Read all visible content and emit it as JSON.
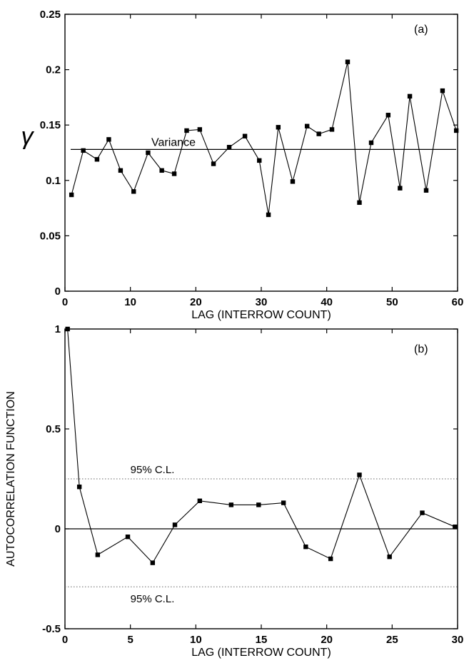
{
  "chart_data": [
    {
      "type": "line",
      "panel_label": "(a)",
      "xlabel": "LAG (INTERROW COUNT)",
      "ylabel": "γ",
      "xlim": [
        0,
        60
      ],
      "ylim": [
        0,
        0.25
      ],
      "xticks": [
        0,
        10,
        20,
        30,
        40,
        50,
        60
      ],
      "yticks": [
        0,
        0.05,
        0.1,
        0.15,
        0.2,
        0.25
      ],
      "ytick_labels": [
        "0",
        "0.05",
        "0.1",
        "0.15",
        "0.2",
        "0.25"
      ],
      "grid": false,
      "series": [
        {
          "color": "#000000",
          "x": [
            1,
            2.8,
            4.9,
            6.7,
            8.5,
            10.5,
            12.7,
            14.8,
            16.7,
            18.6,
            20.6,
            22.7,
            25.1,
            27.5,
            29.7,
            31.1,
            32.6,
            34.8,
            37,
            38.8,
            40.8,
            43.2,
            45,
            46.8,
            49.4,
            51.2,
            52.7,
            55.2,
            57.7,
            59.8
          ],
          "y": [
            0.087,
            0.127,
            0.119,
            0.137,
            0.109,
            0.09,
            0.125,
            0.109,
            0.106,
            0.145,
            0.146,
            0.115,
            0.13,
            0.14,
            0.118,
            0.069,
            0.148,
            0.099,
            0.149,
            0.142,
            0.146,
            0.207,
            0.08,
            0.134,
            0.159,
            0.093,
            0.176,
            0.091,
            0.181,
            0.145
          ]
        }
      ],
      "annotations": [
        {
          "text": "Variance",
          "y": 0.128
        }
      ]
    },
    {
      "type": "line",
      "panel_label": "(b)",
      "xlabel": "LAG (INTERROW COUNT)",
      "ylabel": "AUTOCORRELATION FUNCTION",
      "xlim": [
        0,
        30
      ],
      "ylim": [
        -0.5,
        1
      ],
      "xticks": [
        0,
        5,
        10,
        15,
        20,
        25,
        30
      ],
      "yticks": [
        -0.5,
        0,
        0.5,
        1
      ],
      "ytick_labels": [
        "-0.5",
        "0",
        "0.5",
        "1"
      ],
      "grid": false,
      "series": [
        {
          "color": "#000000",
          "x": [
            0.2,
            1.1,
            2.5,
            4.8,
            6.7,
            8.4,
            10.3,
            12.7,
            14.8,
            16.7,
            18.4,
            20.3,
            22.5,
            24.8,
            27.3,
            29.8
          ],
          "y": [
            1.0,
            0.21,
            -0.13,
            -0.04,
            -0.17,
            0.02,
            0.14,
            0.12,
            0.12,
            0.13,
            -0.09,
            -0.15,
            0.27,
            -0.14,
            0.08,
            0.01
          ]
        }
      ],
      "reference_lines": [
        {
          "text": "95% C.L.",
          "y": 0.25
        },
        {
          "text": "95% C.L.",
          "y": -0.29
        }
      ]
    }
  ]
}
